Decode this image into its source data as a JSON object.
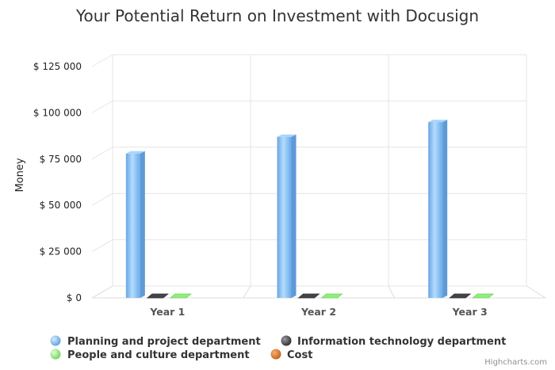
{
  "chart_data": {
    "type": "bar",
    "title": "Your Potential Return on Investment with Docusign",
    "ylabel": "Money",
    "xlabel": "",
    "categories": [
      "Year 1",
      "Year 2",
      "Year 3"
    ],
    "ylim": [
      0,
      125000
    ],
    "y_ticks": [
      0,
      25000,
      50000,
      75000,
      100000,
      125000
    ],
    "y_tick_labels": [
      "$ 0",
      "$ 25 000",
      "$ 50 000",
      "$ 75 000",
      "$ 100 000",
      "$ 125 000"
    ],
    "grid": true,
    "legend_position": "bottom",
    "series": [
      {
        "name": "Planning and project department",
        "values": [
          78000,
          87000,
          95000
        ],
        "color": "#7cb5ec"
      },
      {
        "name": "Information technology department",
        "values": [
          0,
          0,
          0
        ],
        "color": "#434348"
      },
      {
        "name": "People and culture department",
        "values": [
          0,
          0,
          0
        ],
        "color": "#90ed7d"
      },
      {
        "name": "Cost",
        "values": [
          0,
          0,
          0
        ],
        "color": "#e4802c"
      }
    ],
    "credit": "Highcharts.com"
  }
}
